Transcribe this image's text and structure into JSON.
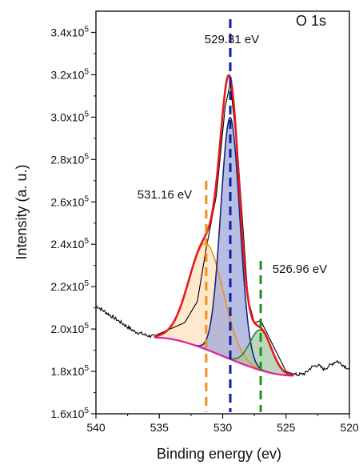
{
  "chart_data": {
    "type": "line",
    "panel_label": "O 1s",
    "xlabel": "Binding energy (ev)",
    "ylabel": "Intensity (a. u.)",
    "xlim": [
      540,
      520
    ],
    "ylim": [
      160000,
      350000
    ],
    "x_ticks": [
      540,
      535,
      530,
      525,
      520
    ],
    "y_ticks": [
      {
        "value": 160000,
        "mantissa": "1.6x10",
        "exp": "5"
      },
      {
        "value": 180000,
        "mantissa": "1.8x10",
        "exp": "5"
      },
      {
        "value": 200000,
        "mantissa": "2.0x10",
        "exp": "5"
      },
      {
        "value": 220000,
        "mantissa": "2.2x10",
        "exp": "5"
      },
      {
        "value": 240000,
        "mantissa": "2.4x10",
        "exp": "5"
      },
      {
        "value": 260000,
        "mantissa": "2.6x10",
        "exp": "5"
      },
      {
        "value": 280000,
        "mantissa": "2.8x10",
        "exp": "5"
      },
      {
        "value": 300000,
        "mantissa": "3.0x10",
        "exp": "5"
      },
      {
        "value": 320000,
        "mantissa": "3.2x10",
        "exp": "5"
      },
      {
        "value": 340000,
        "mantissa": "3.4x10",
        "exp": "5"
      }
    ],
    "grid": false,
    "colors": {
      "raw": "#000000",
      "envelope": "#e41a1c",
      "background": "#e0209e",
      "peak_531": "#f28e1c",
      "peak_529": "#1a237e",
      "peak_527": "#2e7d32",
      "fill_531": "#fde2bf",
      "fill_529": "#9fa8da",
      "fill_527": "#a5c9a5",
      "marker_531": "#f28e1c",
      "marker_529": "#0d1ea0",
      "marker_527": "#1f8f1f"
    },
    "background": {
      "left_x": 535.4,
      "right_x": 524.4,
      "left_y": 196000,
      "right_y": 178000
    },
    "peaks": [
      {
        "id": "peak_531",
        "label": "531.16 eV",
        "center": 531.16,
        "display_center": 531.3,
        "height": 50000,
        "sigma": 1.35
      },
      {
        "id": "peak_529",
        "label": "529.31 eV",
        "center": 529.31,
        "display_center": 529.4,
        "height": 114000,
        "sigma": 0.75
      },
      {
        "id": "peak_527",
        "label": "526.96 eV",
        "center": 526.96,
        "display_center": 527.0,
        "height": 19000,
        "sigma": 0.85
      }
    ],
    "raw": {
      "x": [
        540.0,
        539.0,
        538.0,
        537.0,
        536.0,
        535.5,
        533.0,
        532.0,
        531.3,
        530.5,
        529.8,
        529.4,
        528.8,
        528.0,
        527.5,
        527.0,
        526.0,
        525.0,
        524.3,
        524.0,
        523.5,
        523.0,
        522.5,
        522.0,
        521.5,
        521.0,
        520.5,
        520.0
      ],
      "y": [
        211000,
        207000,
        203000,
        199000,
        197000,
        196500,
        203000,
        213000,
        238000,
        263000,
        305000,
        316000,
        282000,
        214000,
        203000,
        204000,
        192000,
        180000,
        178500,
        178500,
        179000,
        182000,
        183000,
        181000,
        183000,
        185000,
        183000,
        181000
      ]
    },
    "annotations": [
      {
        "text": "531.16 eV",
        "x": 531.16
      },
      {
        "text": "529.31 eV",
        "x": 529.31
      },
      {
        "text": "526.96 eV",
        "x": 526.96
      }
    ]
  }
}
